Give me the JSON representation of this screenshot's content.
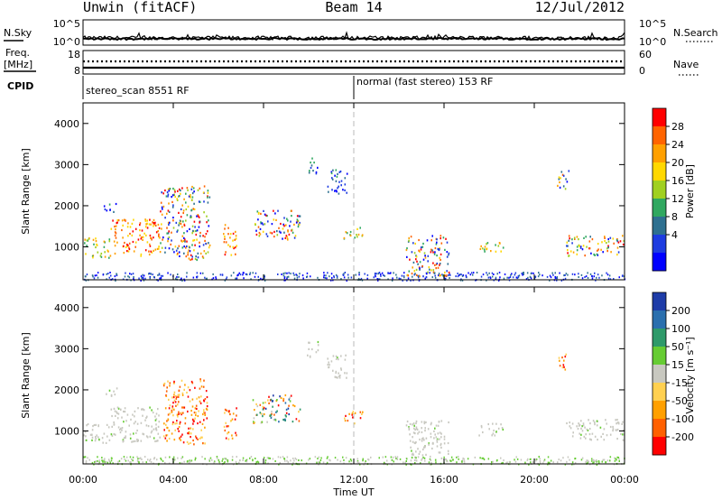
{
  "header": {
    "left_title": "Unwin (fitACF)",
    "center_title": "Beam 14",
    "right_title": "12/Jul/2012"
  },
  "status_panels": {
    "nsky_label": "N.Sky",
    "nsky_ticks": [
      "10^5",
      "10^0"
    ],
    "nsearch_label": "N.Search",
    "nsearch_ticks": [
      "10^5",
      "10^0"
    ],
    "freq_label_1": "Freq.",
    "freq_label_2": "[MHz]",
    "freq_ticks": [
      "18",
      "8"
    ],
    "nave_label": "Nave",
    "nave_ticks": [
      "60",
      "0"
    ],
    "cpid_label": "CPID",
    "cpid_segments": [
      {
        "text": "stereo_scan 8551 RF",
        "start_hour": 0
      },
      {
        "text": "normal (fast stereo) 153 RF",
        "start_hour": 12
      }
    ]
  },
  "chart_data": [
    {
      "type": "heatmap",
      "panel": "power",
      "ylabel": "Slant Range [km]",
      "xlabel": "Time UT",
      "xlim_hours": [
        0,
        24
      ],
      "xticks": [
        "00:00",
        "04:00",
        "08:00",
        "12:00",
        "16:00",
        "20:00",
        "00:00"
      ],
      "ylim": [
        200,
        4500
      ],
      "yticks": [
        1000,
        2000,
        3000,
        4000
      ],
      "colorbar_label": "Power [dB]",
      "colorbar_ticks": [
        "28",
        "24",
        "20",
        "16",
        "12",
        "8",
        "4"
      ],
      "colorbar_colors": [
        "#ff0000",
        "#ff6400",
        "#ffa000",
        "#ffd800",
        "#a0d020",
        "#30a860",
        "#2e7090",
        "#1e3ce0",
        "#0000ff"
      ],
      "echo_regions": [
        {
          "t0": 0.0,
          "t1": 1.2,
          "r0": 750,
          "r1": 1250,
          "level": "mid"
        },
        {
          "t0": 1.2,
          "t1": 3.4,
          "r0": 800,
          "r1": 1700,
          "level": "strong"
        },
        {
          "t0": 3.4,
          "t1": 5.6,
          "r0": 700,
          "r1": 2500,
          "level": "mixed"
        },
        {
          "t0": 0.9,
          "t1": 1.5,
          "r0": 1850,
          "r1": 2100,
          "level": "weak"
        },
        {
          "t0": 6.2,
          "t1": 6.8,
          "r0": 800,
          "r1": 1600,
          "level": "strong"
        },
        {
          "t0": 7.5,
          "t1": 9.6,
          "r0": 1200,
          "r1": 1900,
          "level": "mixed"
        },
        {
          "t0": 10.8,
          "t1": 11.7,
          "r0": 2300,
          "r1": 2900,
          "level": "weak"
        },
        {
          "t0": 9.9,
          "t1": 10.4,
          "r0": 2800,
          "r1": 3200,
          "level": "weak"
        },
        {
          "t0": 11.5,
          "t1": 12.4,
          "r0": 1200,
          "r1": 1500,
          "level": "mid"
        },
        {
          "t0": 14.3,
          "t1": 16.2,
          "r0": 300,
          "r1": 1300,
          "level": "mixed"
        },
        {
          "t0": 17.5,
          "t1": 18.6,
          "r0": 900,
          "r1": 1200,
          "level": "mid"
        },
        {
          "t0": 21.0,
          "t1": 21.5,
          "r0": 2400,
          "r1": 2900,
          "level": "mixed"
        },
        {
          "t0": 21.4,
          "t1": 24.0,
          "r0": 800,
          "r1": 1300,
          "level": "mixed"
        }
      ]
    },
    {
      "type": "heatmap",
      "panel": "velocity",
      "ylabel": "Slant Range [km]",
      "xlabel": "Time UT",
      "xlim_hours": [
        0,
        24
      ],
      "xticks": [
        "00:00",
        "04:00",
        "08:00",
        "12:00",
        "16:00",
        "20:00",
        "00:00"
      ],
      "ylim": [
        200,
        4500
      ],
      "yticks": [
        1000,
        2000,
        3000,
        4000
      ],
      "colorbar_label": "Velocity [m s⁻¹]",
      "colorbar_ticks": [
        "200",
        "100",
        "50",
        "15",
        "-15",
        "-50",
        "-100",
        "-200"
      ],
      "colorbar_colors": [
        "#1e3ca8",
        "#2a6fae",
        "#2e9a6a",
        "#66cc33",
        "#c8c8c0",
        "#ffd050",
        "#ffa000",
        "#ff6000",
        "#ff0000"
      ],
      "echo_regions": [
        {
          "t0": 0.0,
          "t1": 1.2,
          "r0": 700,
          "r1": 1200,
          "level": "ground"
        },
        {
          "t0": 1.2,
          "t1": 3.4,
          "r0": 750,
          "r1": 1600,
          "level": "ground"
        },
        {
          "t0": 3.5,
          "t1": 5.5,
          "r0": 700,
          "r1": 2300,
          "level": "negative"
        },
        {
          "t0": 1.0,
          "t1": 1.5,
          "r0": 1850,
          "r1": 2100,
          "level": "ground"
        },
        {
          "t0": 6.2,
          "t1": 6.8,
          "r0": 800,
          "r1": 1600,
          "level": "negative"
        },
        {
          "t0": 7.5,
          "t1": 9.6,
          "r0": 1200,
          "r1": 1900,
          "level": "mixed"
        },
        {
          "t0": 10.8,
          "t1": 11.7,
          "r0": 2300,
          "r1": 2900,
          "level": "ground"
        },
        {
          "t0": 9.9,
          "t1": 10.4,
          "r0": 2800,
          "r1": 3200,
          "level": "ground"
        },
        {
          "t0": 11.5,
          "t1": 12.4,
          "r0": 1200,
          "r1": 1500,
          "level": "negative"
        },
        {
          "t0": 14.3,
          "t1": 16.2,
          "r0": 300,
          "r1": 1300,
          "level": "ground"
        },
        {
          "t0": 17.5,
          "t1": 18.6,
          "r0": 900,
          "r1": 1200,
          "level": "ground"
        },
        {
          "t0": 21.0,
          "t1": 21.5,
          "r0": 2500,
          "r1": 2900,
          "level": "negative"
        },
        {
          "t0": 21.4,
          "t1": 24.0,
          "r0": 800,
          "r1": 1300,
          "level": "ground"
        }
      ]
    }
  ]
}
